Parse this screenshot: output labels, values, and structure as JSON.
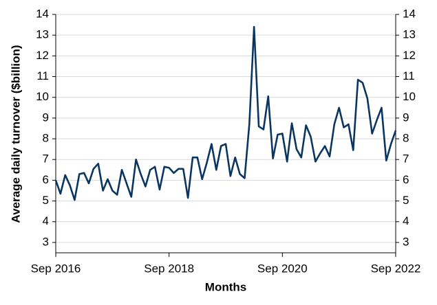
{
  "chart_data": {
    "type": "line",
    "x_label": "Months",
    "y_label": "Average daily turnover ($billion)",
    "x": [
      "2016-09",
      "2016-10",
      "2016-11",
      "2016-12",
      "2017-01",
      "2017-02",
      "2017-03",
      "2017-04",
      "2017-05",
      "2017-06",
      "2017-07",
      "2017-08",
      "2017-09",
      "2017-10",
      "2017-11",
      "2017-12",
      "2018-01",
      "2018-02",
      "2018-03",
      "2018-04",
      "2018-05",
      "2018-06",
      "2018-07",
      "2018-08",
      "2018-09",
      "2018-10",
      "2018-11",
      "2018-12",
      "2019-01",
      "2019-02",
      "2019-03",
      "2019-04",
      "2019-05",
      "2019-06",
      "2019-07",
      "2019-08",
      "2019-09",
      "2019-10",
      "2019-11",
      "2019-12",
      "2020-01",
      "2020-02",
      "2020-03",
      "2020-04",
      "2020-05",
      "2020-06",
      "2020-07",
      "2020-08",
      "2020-09",
      "2020-10",
      "2020-11",
      "2020-12",
      "2021-01",
      "2021-02",
      "2021-03",
      "2021-04",
      "2021-05",
      "2021-06",
      "2021-07",
      "2021-08",
      "2021-09",
      "2021-10",
      "2021-11",
      "2021-12",
      "2022-01",
      "2022-02",
      "2022-03",
      "2022-04",
      "2022-05",
      "2022-06",
      "2022-07",
      "2022-08",
      "2022-09"
    ],
    "series": [
      {
        "color": "#0a3561",
        "values": [
          6.0,
          5.35,
          6.25,
          5.75,
          5.05,
          6.3,
          6.35,
          5.85,
          6.55,
          6.8,
          5.5,
          6.05,
          5.5,
          5.3,
          6.5,
          5.85,
          5.2,
          7.0,
          6.3,
          5.7,
          6.5,
          6.65,
          5.55,
          6.65,
          6.6,
          6.35,
          6.55,
          6.55,
          5.15,
          7.1,
          7.1,
          6.05,
          6.85,
          7.75,
          6.5,
          7.65,
          7.75,
          6.2,
          7.1,
          6.3,
          6.1,
          8.7,
          13.4,
          8.6,
          8.45,
          10.05,
          7.05,
          8.2,
          8.25,
          6.9,
          8.75,
          7.5,
          7.1,
          8.65,
          8.1,
          6.9,
          7.3,
          7.65,
          7.15,
          8.7,
          9.5,
          8.55,
          8.7,
          7.45,
          10.85,
          10.7,
          9.95,
          8.25,
          8.9,
          9.5,
          6.95,
          7.75,
          8.4
        ]
      }
    ],
    "xticks": [
      {
        "value": "2016-09",
        "label": "Sep 2016"
      },
      {
        "value": "2018-09",
        "label": "Sep 2018"
      },
      {
        "value": "2020-09",
        "label": "Sep 2020"
      },
      {
        "value": "2022-09",
        "label": "Sep 2022"
      }
    ],
    "ylim": [
      2.5,
      14
    ],
    "yticks": [
      3,
      4,
      5,
      6,
      7,
      8,
      9,
      10,
      11,
      12,
      13,
      14
    ],
    "grid": true
  }
}
